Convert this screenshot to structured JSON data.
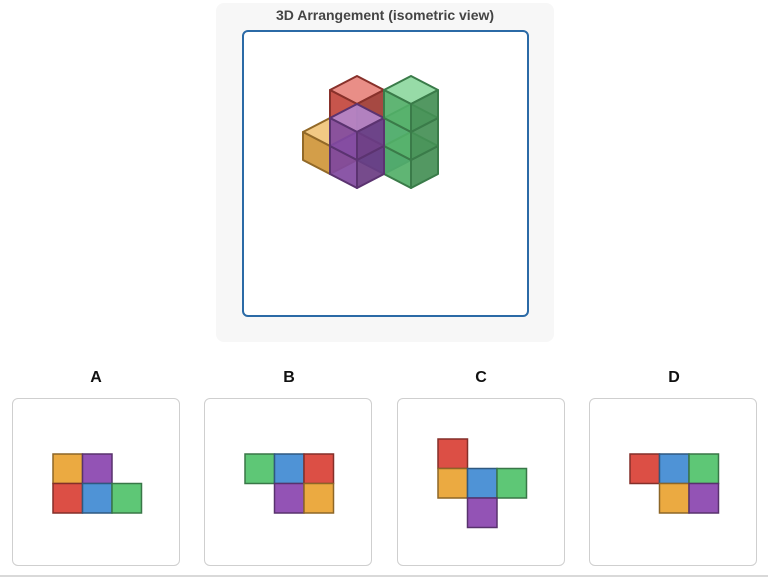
{
  "title": "3D Arrangement (isometric view)",
  "colors": {
    "red": "#dc4f45",
    "blue": "#4f93d6",
    "green": "#5ec776",
    "purple": "#9353b5",
    "orange": "#ebaa41"
  },
  "cubes": [
    {
      "color": "red",
      "x": 0,
      "y": 0,
      "z": 0
    },
    {
      "color": "red",
      "x": 0,
      "y": 0,
      "z": 1
    },
    {
      "color": "green",
      "x": 2,
      "y": 0,
      "z": 0
    },
    {
      "color": "green",
      "x": 2,
      "y": 0,
      "z": 1
    },
    {
      "color": "green",
      "x": 2,
      "y": 0,
      "z": 2
    },
    {
      "color": "blue",
      "x": 1,
      "y": 0,
      "z": 0
    },
    {
      "color": "orange",
      "x": 0,
      "y": 1,
      "z": 0
    },
    {
      "color": "purple",
      "x": 1,
      "y": 1,
      "z": 0
    },
    {
      "color": "purple",
      "x": 1,
      "y": 1,
      "z": 1
    }
  ],
  "options": [
    {
      "label": "A",
      "cells": [
        {
          "col": 0,
          "row": 0,
          "color": "orange"
        },
        {
          "col": 1,
          "row": 0,
          "color": "purple"
        },
        {
          "col": 0,
          "row": 1,
          "color": "red"
        },
        {
          "col": 1,
          "row": 1,
          "color": "blue"
        },
        {
          "col": 2,
          "row": 1,
          "color": "green"
        }
      ]
    },
    {
      "label": "B",
      "cells": [
        {
          "col": 0,
          "row": 0,
          "color": "green"
        },
        {
          "col": 1,
          "row": 0,
          "color": "blue"
        },
        {
          "col": 2,
          "row": 0,
          "color": "red"
        },
        {
          "col": 1,
          "row": 1,
          "color": "purple"
        },
        {
          "col": 2,
          "row": 1,
          "color": "orange"
        }
      ]
    },
    {
      "label": "C",
      "cells": [
        {
          "col": 0,
          "row": 0,
          "color": "red"
        },
        {
          "col": 0,
          "row": 1,
          "color": "orange"
        },
        {
          "col": 1,
          "row": 1,
          "color": "blue"
        },
        {
          "col": 2,
          "row": 1,
          "color": "green"
        },
        {
          "col": 1,
          "row": 2,
          "color": "purple"
        }
      ]
    },
    {
      "label": "D",
      "cells": [
        {
          "col": 0,
          "row": 0,
          "color": "red"
        },
        {
          "col": 1,
          "row": 0,
          "color": "blue"
        },
        {
          "col": 2,
          "row": 0,
          "color": "green"
        },
        {
          "col": 1,
          "row": 1,
          "color": "orange"
        },
        {
          "col": 2,
          "row": 1,
          "color": "purple"
        }
      ]
    }
  ]
}
